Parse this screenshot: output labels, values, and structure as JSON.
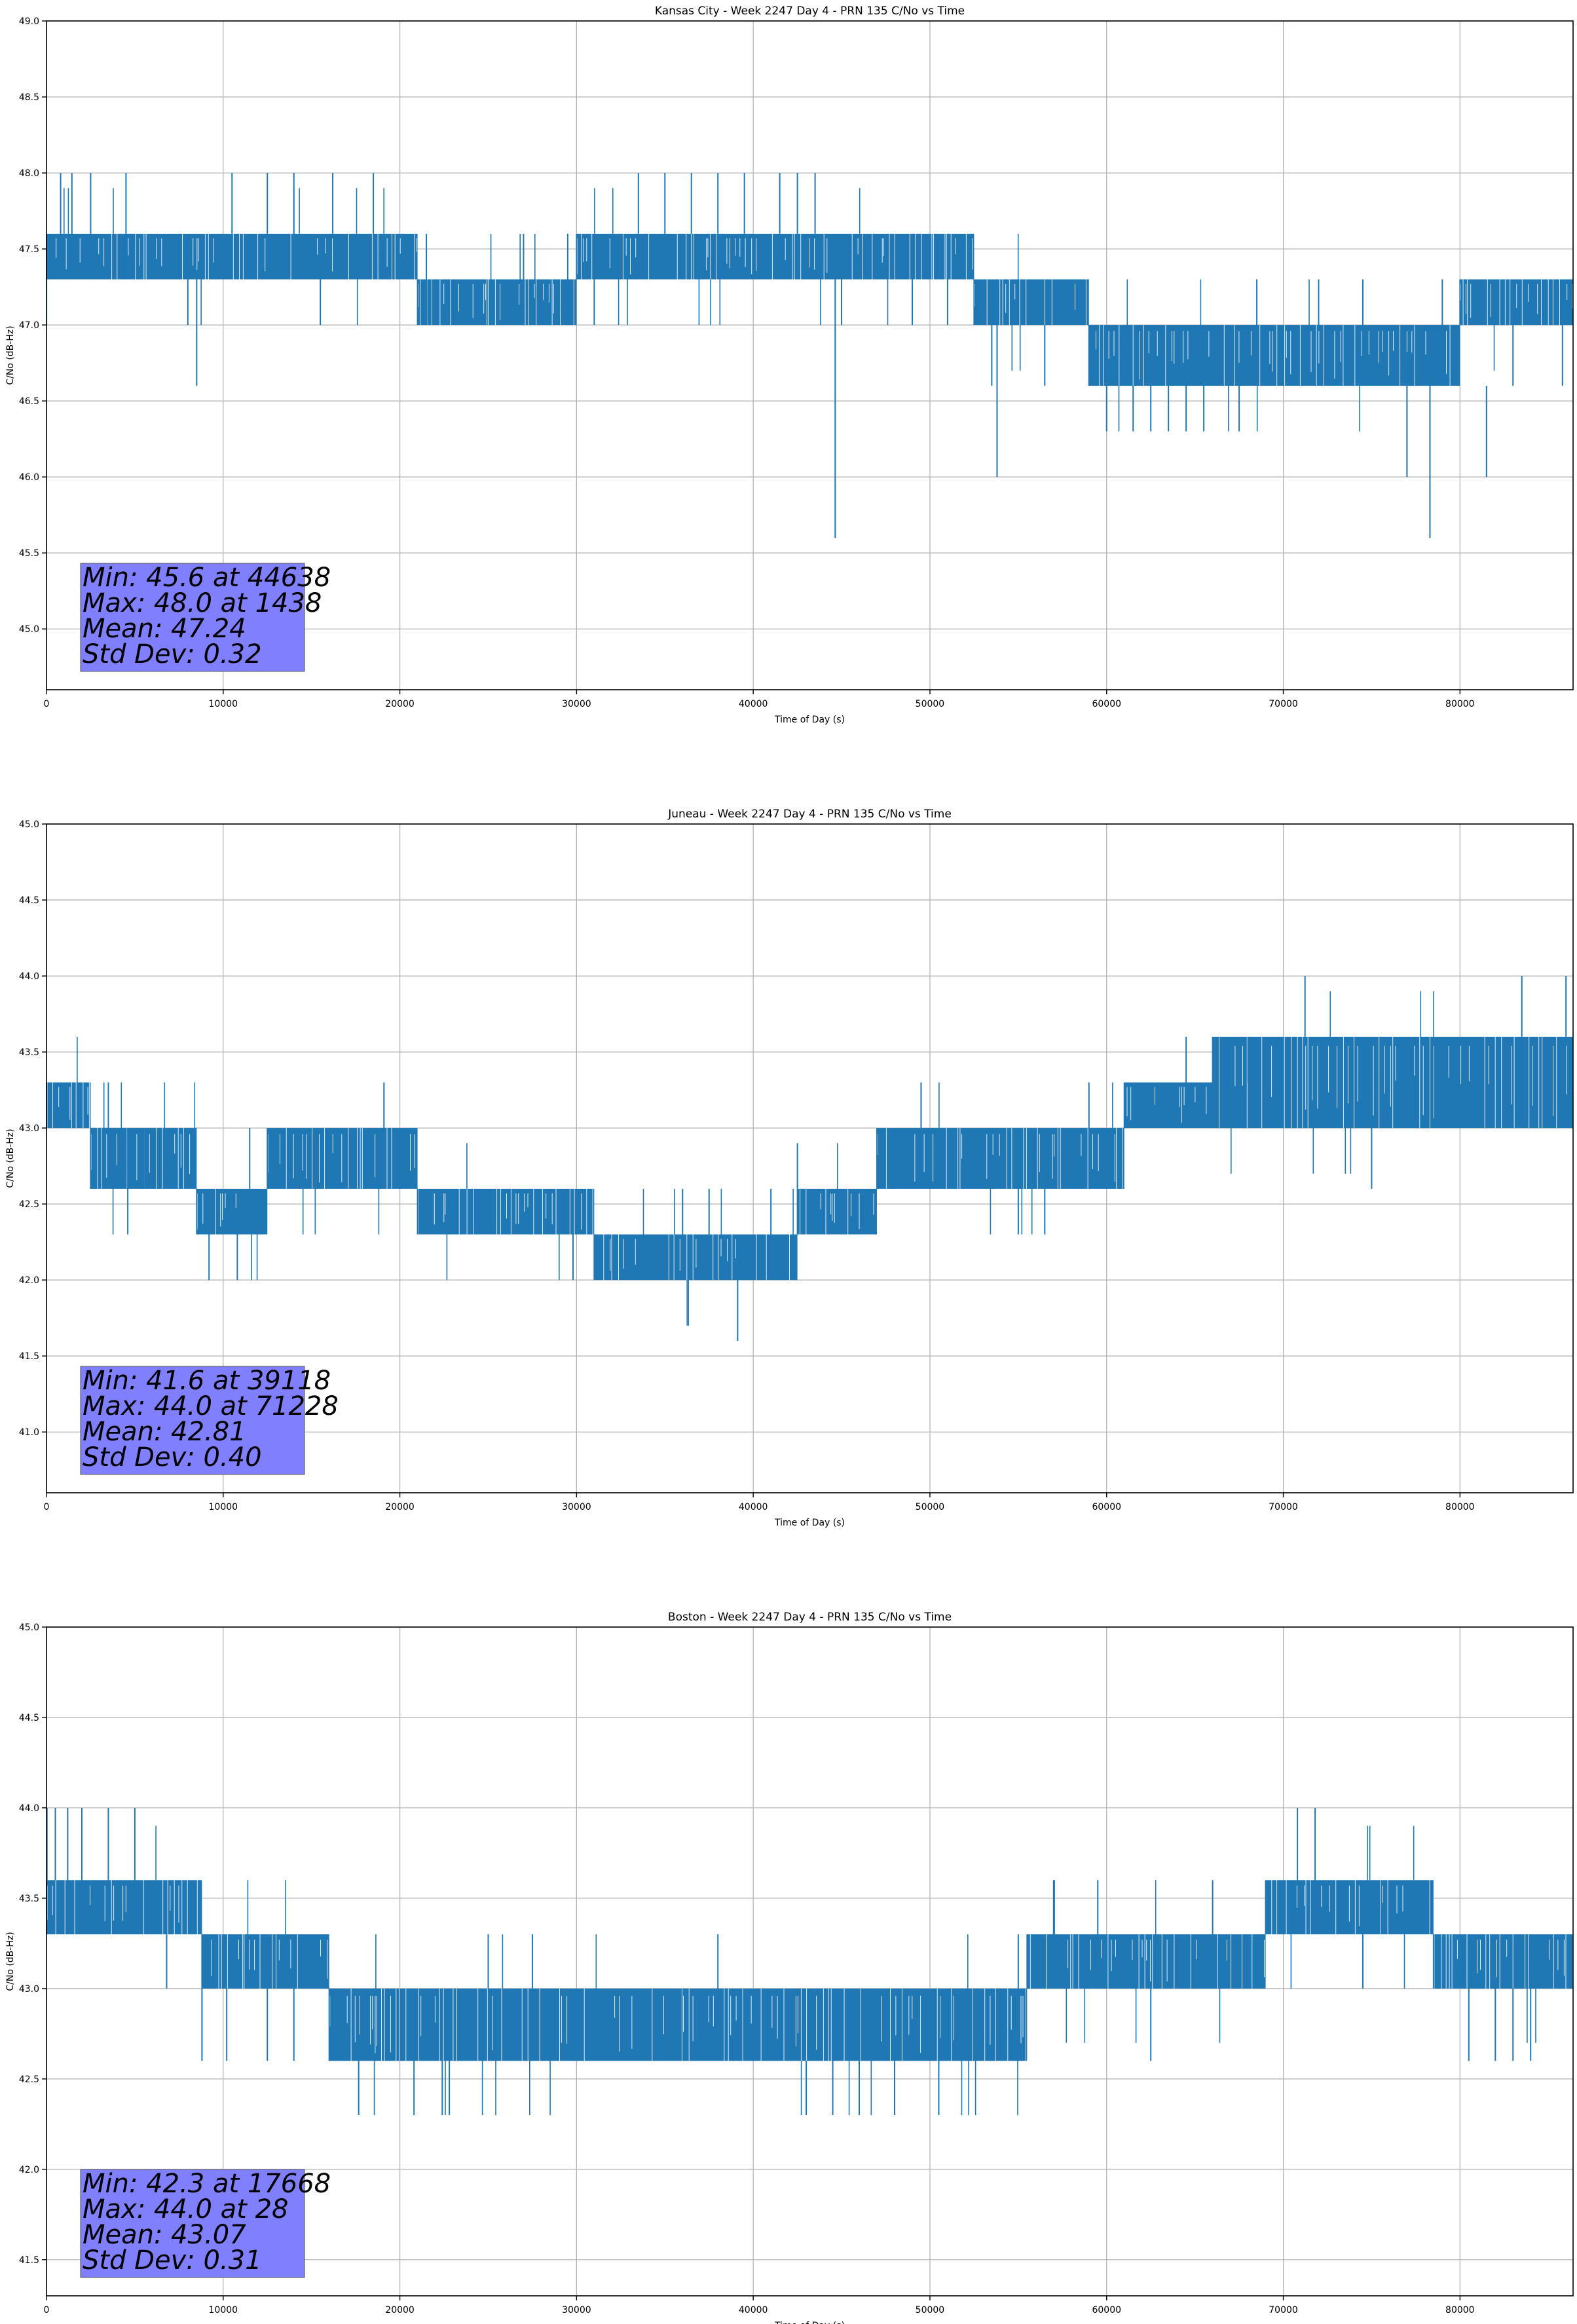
{
  "chart_data": [
    {
      "type": "line",
      "title": "Kansas City - Week 2247 Day 4 - PRN 135 C/No vs Time",
      "xlabel": "Time of Day (s)",
      "ylabel": "C/No (dB-Hz)",
      "xlim": [
        0,
        86400
      ],
      "ylim": [
        44.6,
        49.0
      ],
      "xticks": [
        0,
        10000,
        20000,
        30000,
        40000,
        50000,
        60000,
        70000,
        80000
      ],
      "yticks": [
        45.0,
        45.5,
        46.0,
        46.5,
        47.0,
        47.5,
        48.0,
        48.5,
        49.0
      ],
      "grid": true,
      "line_color": "#1f77b4",
      "stats_box_color": "#8080ff",
      "stats": [
        "Min: 45.6 at 44638",
        "Max: 48.0 at 1438",
        "Mean: 47.24",
        "Std Dev: 0.32"
      ],
      "series": [
        {
          "segments": [
            {
              "x": [
                0,
                21000
              ],
              "low": 47.3,
              "high": 47.6
            },
            {
              "x": [
                21000,
                30000
              ],
              "low": 47.0,
              "high": 47.3
            },
            {
              "x": [
                30000,
                52500
              ],
              "low": 47.3,
              "high": 47.6
            },
            {
              "x": [
                52500,
                59000
              ],
              "low": 47.0,
              "high": 47.3
            },
            {
              "x": [
                59000,
                80000
              ],
              "low": 46.6,
              "high": 47.0
            },
            {
              "x": [
                80000,
                86400
              ],
              "low": 47.0,
              "high": 47.3
            }
          ],
          "spikes": [
            [
              800,
              47.3,
              48.0
            ],
            [
              1438,
              47.3,
              48.0
            ],
            [
              2500,
              47.3,
              48.0
            ],
            [
              4500,
              47.3,
              48.0
            ],
            [
              8000,
              47.0,
              47.3
            ],
            [
              8500,
              46.6,
              47.3
            ],
            [
              10500,
              47.6,
              48.0
            ],
            [
              12500,
              47.6,
              48.0
            ],
            [
              14000,
              47.6,
              48.0
            ],
            [
              15500,
              47.0,
              47.3
            ],
            [
              16200,
              47.6,
              48.0
            ],
            [
              18500,
              47.6,
              48.0
            ],
            [
              21500,
              47.0,
              47.6
            ],
            [
              27000,
              47.0,
              47.6
            ],
            [
              29500,
              47.0,
              47.6
            ],
            [
              31000,
              47.0,
              47.3
            ],
            [
              33500,
              47.6,
              48.0
            ],
            [
              35000,
              47.6,
              48.0
            ],
            [
              36500,
              47.6,
              48.0
            ],
            [
              38000,
              47.6,
              48.0
            ],
            [
              39500,
              47.6,
              48.0
            ],
            [
              41500,
              47.6,
              48.0
            ],
            [
              42500,
              47.6,
              48.0
            ],
            [
              43500,
              47.6,
              48.0
            ],
            [
              44638,
              45.6,
              47.3
            ],
            [
              45000,
              47.0,
              47.3
            ],
            [
              49000,
              47.0,
              47.6
            ],
            [
              51000,
              47.0,
              47.6
            ],
            [
              53500,
              46.6,
              47.0
            ],
            [
              53800,
              46.0,
              47.0
            ],
            [
              56500,
              46.6,
              47.0
            ],
            [
              59500,
              46.6,
              47.0
            ],
            [
              60000,
              46.3,
              46.6
            ],
            [
              61500,
              46.3,
              46.6
            ],
            [
              62500,
              46.3,
              46.6
            ],
            [
              63500,
              46.3,
              46.6
            ],
            [
              64500,
              46.3,
              46.6
            ],
            [
              65500,
              46.3,
              46.6
            ],
            [
              67500,
              46.3,
              46.6
            ],
            [
              68500,
              47.0,
              47.3
            ],
            [
              72000,
              47.0,
              47.3
            ],
            [
              74500,
              47.0,
              47.3
            ],
            [
              77000,
              46.0,
              46.6
            ],
            [
              78300,
              45.6,
              46.6
            ],
            [
              79000,
              46.6,
              47.3
            ],
            [
              81500,
              46.0,
              46.6
            ],
            [
              83000,
              46.6,
              47.0
            ],
            [
              85800,
              46.6,
              47.0
            ]
          ]
        }
      ]
    },
    {
      "type": "line",
      "title": "Juneau - Week 2247 Day 4 - PRN 135 C/No vs Time",
      "xlabel": "Time of Day (s)",
      "ylabel": "C/No (dB-Hz)",
      "xlim": [
        0,
        86400
      ],
      "ylim": [
        40.6,
        45.0
      ],
      "xticks": [
        0,
        10000,
        20000,
        30000,
        40000,
        50000,
        60000,
        70000,
        80000
      ],
      "yticks": [
        41.0,
        41.5,
        42.0,
        42.5,
        43.0,
        43.5,
        44.0,
        44.5,
        45.0
      ],
      "grid": true,
      "line_color": "#1f77b4",
      "stats_box_color": "#8080ff",
      "stats": [
        "Min: 41.6 at 39118",
        "Max: 44.0 at 71228",
        "Mean: 42.81",
        "Std Dev: 0.40"
      ],
      "series": [
        {
          "segments": [
            {
              "x": [
                0,
                2500
              ],
              "low": 43.0,
              "high": 43.3
            },
            {
              "x": [
                2500,
                8500
              ],
              "low": 42.6,
              "high": 43.0
            },
            {
              "x": [
                8500,
                12500
              ],
              "low": 42.3,
              "high": 42.6
            },
            {
              "x": [
                12500,
                21000
              ],
              "low": 42.6,
              "high": 43.0
            },
            {
              "x": [
                21000,
                31000
              ],
              "low": 42.3,
              "high": 42.6
            },
            {
              "x": [
                31000,
                42500
              ],
              "low": 42.0,
              "high": 42.3
            },
            {
              "x": [
                42500,
                47000
              ],
              "low": 42.3,
              "high": 42.6
            },
            {
              "x": [
                47000,
                61000
              ],
              "low": 42.6,
              "high": 43.0
            },
            {
              "x": [
                61000,
                66000
              ],
              "low": 43.0,
              "high": 43.3
            },
            {
              "x": [
                66000,
                86400
              ],
              "low": 43.0,
              "high": 43.6
            }
          ],
          "spikes": [
            [
              2000,
              43.0,
              43.3
            ],
            [
              3500,
              43.0,
              43.3
            ],
            [
              4600,
              42.3,
              43.0
            ],
            [
              5500,
              42.6,
              43.0
            ],
            [
              9200,
              42.0,
              42.3
            ],
            [
              10800,
              42.0,
              42.3
            ],
            [
              11500,
              42.6,
              43.0
            ],
            [
              19100,
              43.0,
              43.3
            ],
            [
              29800,
              42.0,
              42.3
            ],
            [
              36000,
              42.3,
              42.6
            ],
            [
              37500,
              42.3,
              42.6
            ],
            [
              39118,
              41.6,
              42.0
            ],
            [
              41000,
              42.3,
              42.6
            ],
            [
              42500,
              42.6,
              42.9
            ],
            [
              48000,
              42.6,
              43.0
            ],
            [
              49500,
              43.0,
              43.3
            ],
            [
              55000,
              42.3,
              42.6
            ],
            [
              56500,
              42.3,
              42.6
            ],
            [
              59000,
              43.0,
              43.3
            ],
            [
              64500,
              43.3,
              43.6
            ],
            [
              68000,
              43.3,
              43.6
            ],
            [
              71228,
              43.6,
              44.0
            ],
            [
              75000,
              42.6,
              43.0
            ],
            [
              77500,
              43.0,
              43.3
            ],
            [
              83500,
              43.6,
              44.0
            ],
            [
              86000,
              43.6,
              44.0
            ]
          ]
        }
      ]
    },
    {
      "type": "line",
      "title": "Boston - Week 2247 Day 4 - PRN 135 C/No vs Time",
      "xlabel": "Time of Day (s)",
      "ylabel": "C/No (dB-Hz)",
      "xlim": [
        0,
        86400
      ],
      "ylim": [
        41.3,
        45.0
      ],
      "xticks": [
        0,
        10000,
        20000,
        30000,
        40000,
        50000,
        60000,
        70000,
        80000
      ],
      "yticks": [
        41.5,
        42.0,
        42.5,
        43.0,
        43.5,
        44.0,
        44.5,
        45.0
      ],
      "grid": true,
      "line_color": "#1f77b4",
      "stats_box_color": "#8080ff",
      "stats": [
        "Min: 42.3 at 17668",
        "Max: 44.0 at 28",
        "Mean: 43.07",
        "Std Dev: 0.31"
      ],
      "series": [
        {
          "segments": [
            {
              "x": [
                0,
                8800
              ],
              "low": 43.3,
              "high": 43.6
            },
            {
              "x": [
                8800,
                16000
              ],
              "low": 43.0,
              "high": 43.3
            },
            {
              "x": [
                16000,
                55500
              ],
              "low": 42.6,
              "high": 43.0
            },
            {
              "x": [
                55500,
                69000
              ],
              "low": 43.0,
              "high": 43.3
            },
            {
              "x": [
                69000,
                78500
              ],
              "low": 43.3,
              "high": 43.6
            },
            {
              "x": [
                78500,
                86400
              ],
              "low": 43.0,
              "high": 43.3
            }
          ],
          "spikes": [
            [
              28,
              43.6,
              44.0
            ],
            [
              500,
              43.6,
              44.0
            ],
            [
              1200,
              43.6,
              44.0
            ],
            [
              2000,
              43.6,
              44.0
            ],
            [
              3500,
              43.6,
              44.0
            ],
            [
              5000,
              43.6,
              44.0
            ],
            [
              6800,
              43.0,
              43.3
            ],
            [
              8800,
              42.6,
              43.0
            ],
            [
              10200,
              42.6,
              43.0
            ],
            [
              12500,
              42.6,
              43.0
            ],
            [
              14000,
              42.6,
              43.0
            ],
            [
              17668,
              42.3,
              42.6
            ],
            [
              20800,
              42.3,
              42.6
            ],
            [
              22400,
              42.3,
              42.6
            ],
            [
              22800,
              42.3,
              42.6
            ],
            [
              25000,
              43.0,
              43.3
            ],
            [
              27500,
              43.0,
              43.3
            ],
            [
              38000,
              43.0,
              43.3
            ],
            [
              43000,
              42.3,
              42.6
            ],
            [
              44500,
              42.3,
              42.6
            ],
            [
              46000,
              42.3,
              42.6
            ],
            [
              48000,
              42.3,
              42.6
            ],
            [
              50500,
              42.3,
              42.6
            ],
            [
              55000,
              43.0,
              43.3
            ],
            [
              57000,
              43.3,
              43.6
            ],
            [
              59500,
              43.3,
              43.6
            ],
            [
              62500,
              42.6,
              43.0
            ],
            [
              66000,
              43.3,
              43.6
            ],
            [
              70800,
              43.6,
              44.0
            ],
            [
              71800,
              43.6,
              44.0
            ],
            [
              74500,
              43.0,
              43.3
            ],
            [
              80500,
              42.6,
              43.0
            ],
            [
              82000,
              42.6,
              43.0
            ],
            [
              83000,
              42.6,
              43.0
            ],
            [
              84000,
              42.6,
              43.0
            ]
          ]
        }
      ]
    }
  ]
}
